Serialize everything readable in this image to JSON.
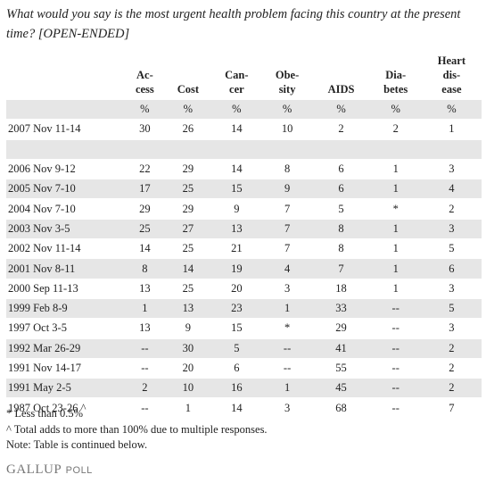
{
  "question": "What would you say is the most urgent health problem facing this country at the present time? [OPEN-ENDED]",
  "table": {
    "columns": [
      "Ac-\ncess",
      "Cost",
      "Can-\ncer",
      "Obe-\nsity",
      "AIDS",
      "Dia-\nbetes",
      "Heart\ndis-\nease"
    ],
    "units": [
      "%",
      "%",
      "%",
      "%",
      "%",
      "%",
      "%"
    ],
    "latest": {
      "label": "2007 Nov 11-14",
      "cells": [
        30,
        26,
        14,
        10,
        2,
        2,
        1
      ]
    },
    "trend": [
      {
        "label": "2006 Nov 9-12",
        "cells": [
          22,
          29,
          14,
          8,
          6,
          1,
          3
        ]
      },
      {
        "label": "2005 Nov 7-10",
        "cells": [
          17,
          25,
          15,
          9,
          6,
          1,
          4
        ]
      },
      {
        "label": "2004 Nov 7-10",
        "cells": [
          29,
          29,
          9,
          7,
          5,
          "*",
          2
        ]
      },
      {
        "label": "2003 Nov 3-5",
        "cells": [
          25,
          27,
          13,
          7,
          8,
          1,
          3
        ]
      },
      {
        "label": "2002 Nov 11-14",
        "cells": [
          14,
          25,
          21,
          7,
          8,
          1,
          5
        ]
      },
      {
        "label": "2001 Nov 8-11",
        "cells": [
          8,
          14,
          19,
          4,
          7,
          1,
          6
        ]
      },
      {
        "label": "2000 Sep 11-13",
        "cells": [
          13,
          25,
          20,
          3,
          18,
          1,
          3
        ]
      },
      {
        "label": "1999 Feb 8-9",
        "cells": [
          1,
          13,
          23,
          1,
          33,
          "--",
          5
        ]
      },
      {
        "label": "1997 Oct 3-5",
        "cells": [
          13,
          9,
          15,
          "*",
          29,
          "--",
          3
        ]
      },
      {
        "label": "1992 Mar 26-29",
        "cells": [
          "--",
          30,
          5,
          "--",
          41,
          "--",
          2
        ]
      },
      {
        "label": "1991 Nov 14-17",
        "cells": [
          "--",
          20,
          6,
          "--",
          55,
          "--",
          2
        ]
      },
      {
        "label": "1991 May 2-5",
        "cells": [
          2,
          10,
          16,
          1,
          45,
          "--",
          2
        ]
      },
      {
        "label": "1987 Oct 23-26 ^",
        "cells": [
          "--",
          1,
          14,
          3,
          68,
          "--",
          7
        ]
      }
    ]
  },
  "footnotes": [
    "* Less than 0.5%",
    "^ Total adds to more than 100% due to multiple responses.",
    "Note: Table is continued below."
  ],
  "logo": {
    "main": "GALLUP",
    "sub": "POLL"
  }
}
